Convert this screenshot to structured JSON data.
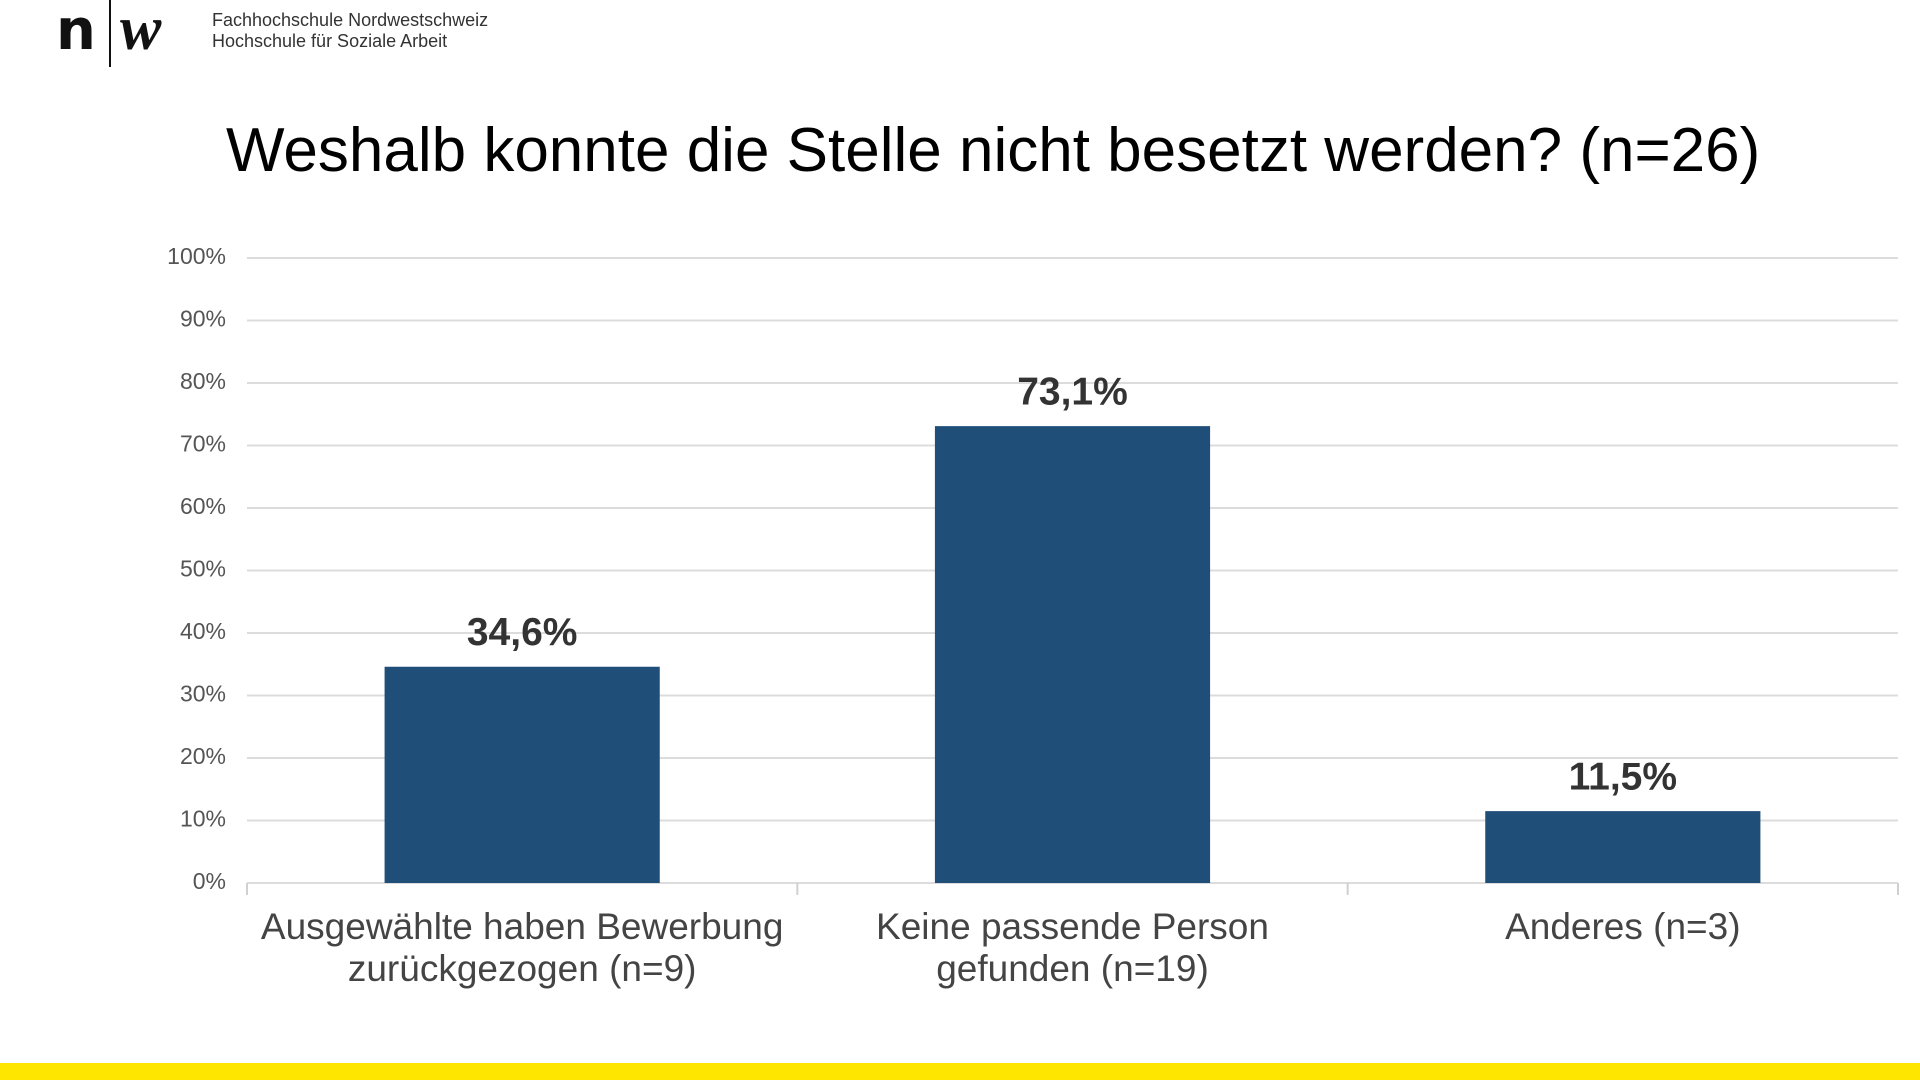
{
  "header": {
    "logo": [
      "n",
      "w"
    ],
    "institution": [
      "Fachhochschule Nordwestschweiz",
      "Hochschule für Soziale Arbeit"
    ]
  },
  "chart_data": {
    "type": "bar",
    "title": "Weshalb konnte die Stelle nicht besetzt werden? (n=26)",
    "categories": [
      "Ausgewählte haben Bewerbung\nzurückgezogen (n=9)",
      "Keine passende Person\ngefunden (n=19)",
      "Anderes (n=3)"
    ],
    "values": [
      34.6,
      73.1,
      11.5
    ],
    "value_labels": [
      "34,6%",
      "73,1%",
      "11,5%"
    ],
    "color": "#1f4e79",
    "ylim": [
      0,
      100
    ],
    "yticks": [
      {
        "value": 0,
        "label": "0%"
      },
      {
        "value": 10,
        "label": "10%"
      },
      {
        "value": 20,
        "label": "20%"
      },
      {
        "value": 30,
        "label": "30%"
      },
      {
        "value": 40,
        "label": "40%"
      },
      {
        "value": 50,
        "label": "50%"
      },
      {
        "value": 60,
        "label": "60%"
      },
      {
        "value": 70,
        "label": "70%"
      },
      {
        "value": 80,
        "label": "80%"
      },
      {
        "value": 90,
        "label": "90%"
      },
      {
        "value": 100,
        "label": "100%"
      }
    ],
    "grid": true
  }
}
